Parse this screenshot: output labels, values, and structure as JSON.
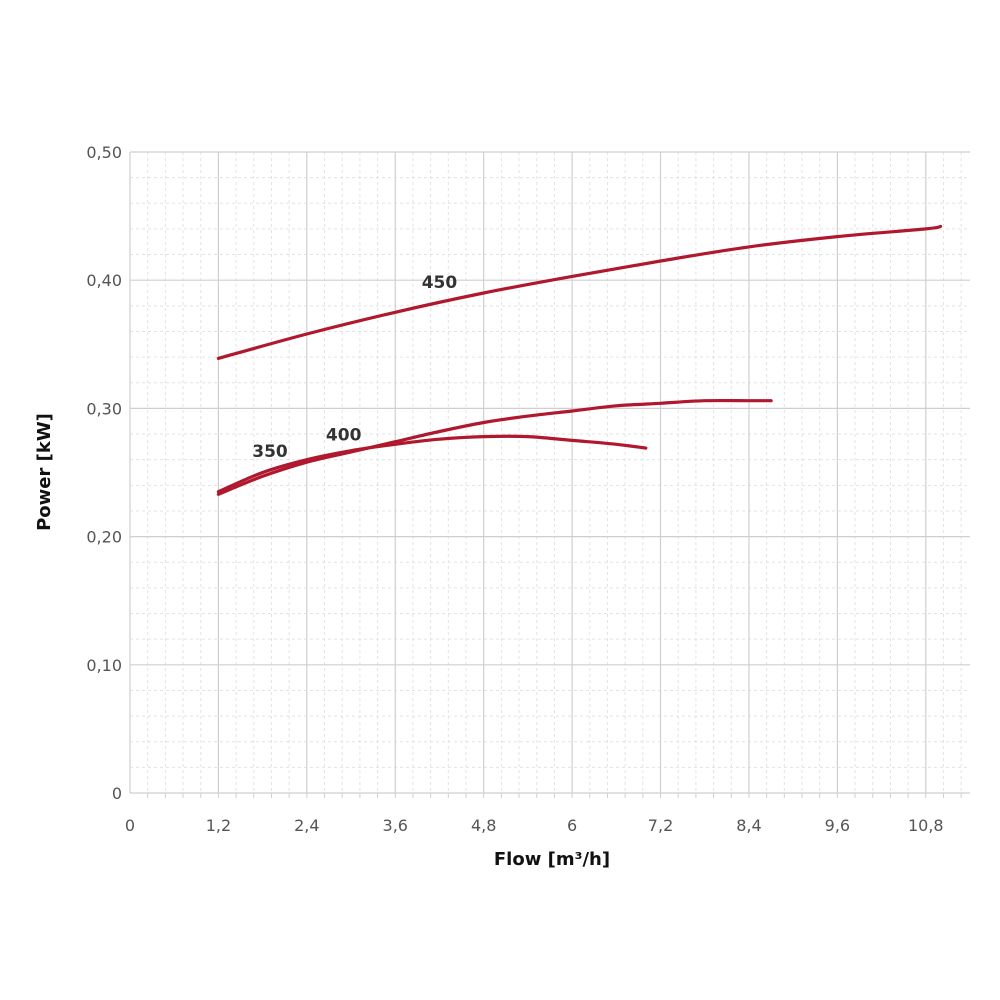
{
  "chart_data": {
    "type": "line",
    "xlabel": "Flow [m³/h]",
    "ylabel": "Power [kW]",
    "xlim": [
      0,
      11.4
    ],
    "ylim": [
      0,
      0.5
    ],
    "x_ticks": [
      0,
      1.2,
      2.4,
      3.6,
      4.8,
      6,
      7.2,
      8.4,
      9.6,
      10.8
    ],
    "x_tick_labels": [
      "0",
      "1,2",
      "2,4",
      "3,6",
      "4,8",
      "6",
      "7,2",
      "8,4",
      "9,6",
      "10,8"
    ],
    "y_ticks": [
      0,
      0.1,
      0.2,
      0.3,
      0.4,
      0.5
    ],
    "y_tick_labels": [
      "0",
      "0,10",
      "0,20",
      "0,30",
      "0,40",
      "0,50"
    ],
    "grid": true,
    "minor_grid": true,
    "line_color": "#b0182e",
    "series": [
      {
        "name": "350",
        "x": [
          1.2,
          1.8,
          2.4,
          3.0,
          3.6,
          4.2,
          4.8,
          5.4,
          6.0,
          6.6,
          7.0
        ],
        "values": [
          0.235,
          0.25,
          0.26,
          0.267,
          0.272,
          0.276,
          0.278,
          0.278,
          0.275,
          0.272,
          0.269
        ]
      },
      {
        "name": "400",
        "x": [
          1.2,
          1.8,
          2.4,
          3.0,
          3.6,
          4.2,
          4.8,
          5.4,
          6.0,
          6.6,
          7.2,
          7.8,
          8.4,
          8.7
        ],
        "values": [
          0.233,
          0.247,
          0.258,
          0.266,
          0.274,
          0.282,
          0.289,
          0.294,
          0.298,
          0.302,
          0.304,
          0.306,
          0.306,
          0.306
        ]
      },
      {
        "name": "450",
        "x": [
          1.2,
          2.4,
          3.6,
          4.8,
          6.0,
          7.2,
          8.4,
          9.6,
          10.8,
          11.0
        ],
        "values": [
          0.339,
          0.358,
          0.375,
          0.39,
          0.403,
          0.415,
          0.426,
          0.434,
          0.44,
          0.442
        ]
      }
    ]
  }
}
